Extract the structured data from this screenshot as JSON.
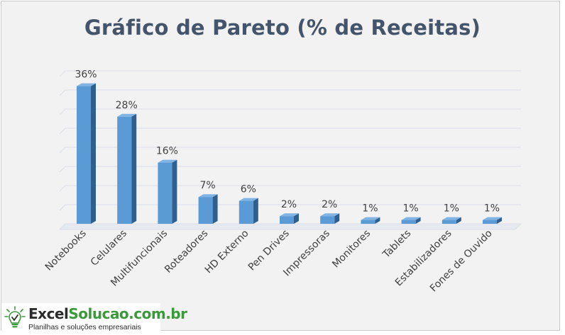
{
  "chart_data": {
    "type": "bar",
    "title": "Gráfico de Pareto (% de Receitas)",
    "categories": [
      "Notebooks",
      "Celulares",
      "Multifuncionais",
      "Roteadores",
      "HD Externo",
      "Pen Drives",
      "Impressoras",
      "Monitores",
      "Tablets",
      "Estabilizadores",
      "Fones de Ouvido"
    ],
    "values": [
      36,
      28,
      16,
      7,
      6,
      2,
      2,
      1,
      1,
      1,
      1
    ],
    "data_labels": [
      "36%",
      "28%",
      "16%",
      "7%",
      "6%",
      "2%",
      "2%",
      "1%",
      "1%",
      "1%",
      "1%"
    ],
    "ylim": [
      0,
      40
    ],
    "grid": true,
    "legend": "none",
    "bar_color": "#5b9bd5",
    "xlabel": "",
    "ylabel": ""
  },
  "logo": {
    "brand_part1": "Excel",
    "brand_part2": "Solucao.com.br",
    "tagline": "Planilhas e soluções empresariais"
  },
  "colors": {
    "title": "#44546a",
    "background": "#f2f2f2",
    "grid": "#d9dee8",
    "brand_green": "#3a9a3a"
  }
}
